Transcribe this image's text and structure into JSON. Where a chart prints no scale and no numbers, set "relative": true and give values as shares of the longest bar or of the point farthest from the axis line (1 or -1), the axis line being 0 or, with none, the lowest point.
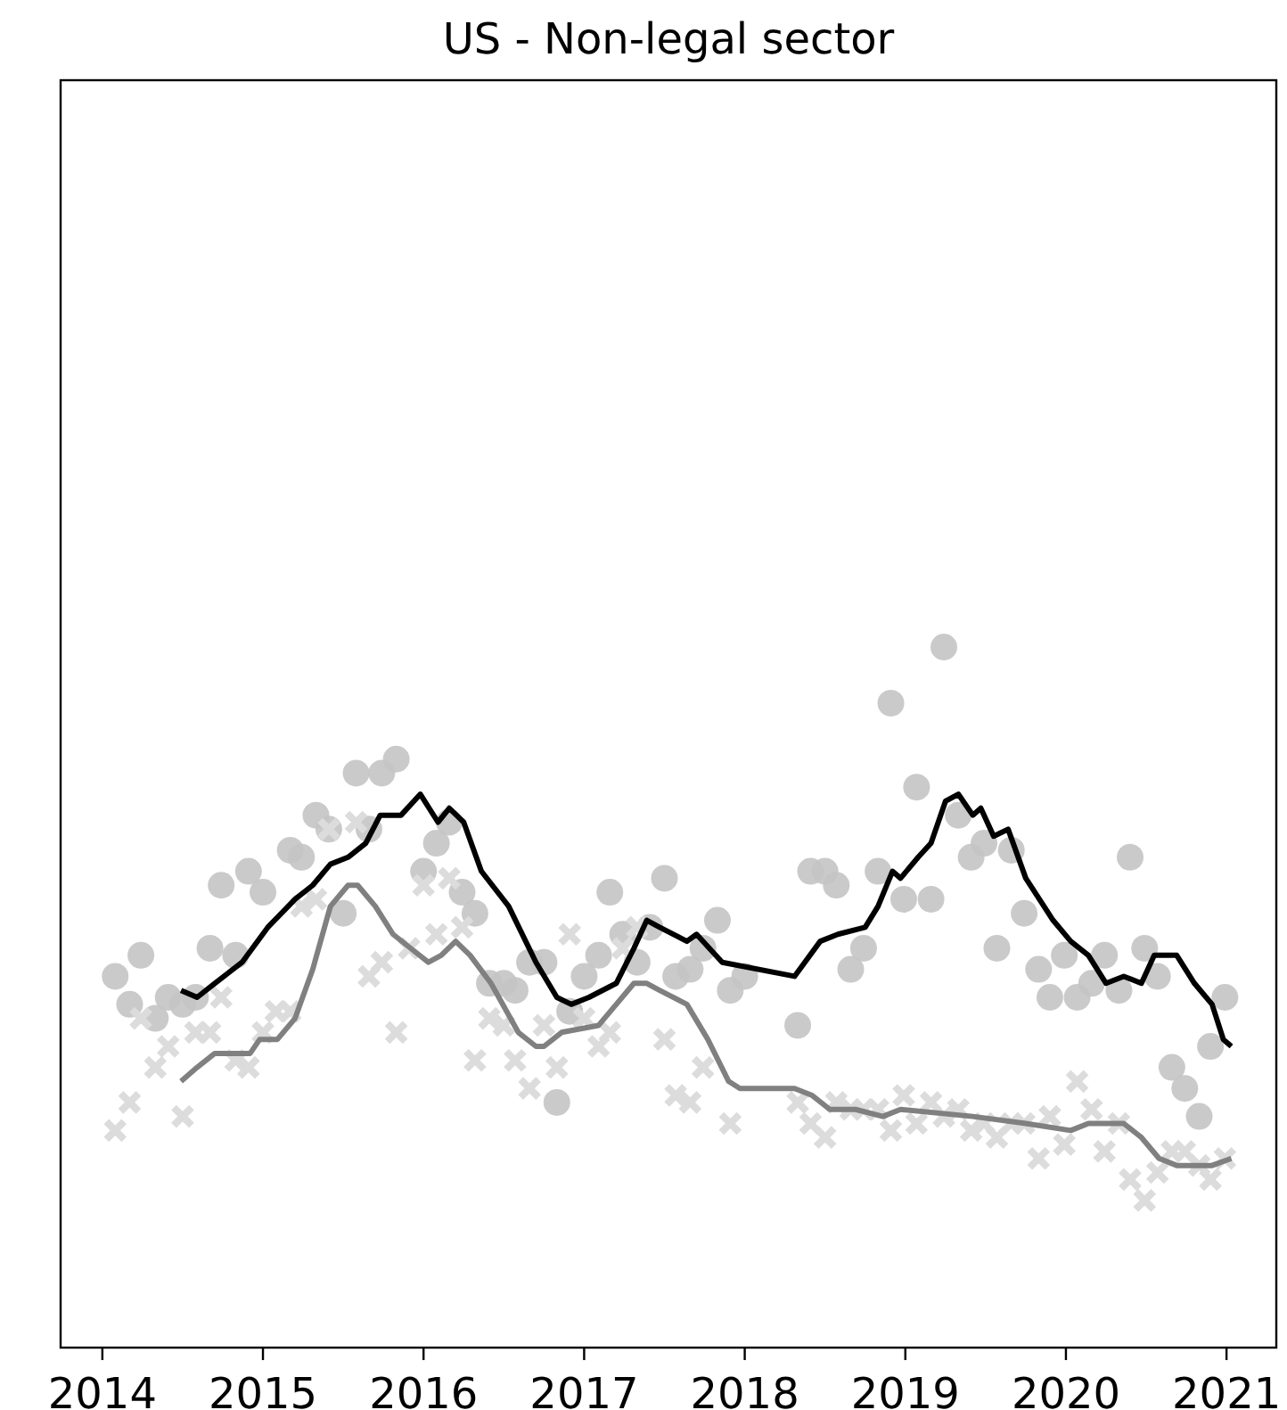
{
  "chart_data": {
    "type": "line",
    "title": "US - Non-legal sector",
    "relative": true,
    "grid": false,
    "xlim": [
      2013.74,
      2021.31
    ],
    "xticks": [
      2014,
      2015,
      2016,
      2017,
      2018,
      2019,
      2020,
      2021
    ],
    "series": [
      {
        "type": "scatter",
        "marker": "circle",
        "color": "#c4c4c4",
        "x": [
          2014.08,
          2014.17,
          2014.24,
          2014.33,
          2014.41,
          2014.5,
          2014.58,
          2014.67,
          2014.74,
          2014.83,
          2014.91,
          2015.0,
          2015.17,
          2015.24,
          2015.33,
          2015.41,
          2015.5,
          2015.58,
          2015.66,
          2015.74,
          2015.83,
          2016.0,
          2016.08,
          2016.16,
          2016.24,
          2016.32,
          2016.41,
          2016.5,
          2016.57,
          2016.66,
          2016.75,
          2016.83,
          2016.91,
          2017.0,
          2017.09,
          2017.16,
          2017.24,
          2017.33,
          2017.41,
          2017.5,
          2017.57,
          2017.66,
          2017.74,
          2017.83,
          2017.91,
          2018.0,
          2018.33,
          2018.41,
          2018.5,
          2018.57,
          2018.66,
          2018.74,
          2018.83,
          2018.91,
          2018.99,
          2019.07,
          2019.16,
          2019.24,
          2019.33,
          2019.41,
          2019.49,
          2019.57,
          2019.66,
          2019.74,
          2019.83,
          2019.9,
          2019.99,
          2020.07,
          2020.16,
          2020.24,
          2020.33,
          2020.4,
          2020.49,
          2020.57,
          2020.66,
          2020.74,
          2020.83,
          2020.9,
          2020.99
        ],
        "values": [
          0.53,
          0.49,
          0.56,
          0.47,
          0.5,
          0.49,
          0.5,
          0.57,
          0.66,
          0.56,
          0.68,
          0.65,
          0.71,
          0.7,
          0.76,
          0.74,
          0.62,
          0.82,
          0.74,
          0.82,
          0.84,
          0.68,
          0.72,
          0.75,
          0.65,
          0.62,
          0.52,
          0.52,
          0.51,
          0.55,
          0.55,
          0.35,
          0.48,
          0.53,
          0.56,
          0.65,
          0.59,
          0.55,
          0.6,
          0.67,
          0.53,
          0.54,
          0.57,
          0.61,
          0.51,
          0.53,
          0.46,
          0.68,
          0.68,
          0.66,
          0.54,
          0.57,
          0.68,
          0.92,
          0.64,
          0.8,
          0.64,
          1,
          0.76,
          0.7,
          0.72,
          0.57,
          0.71,
          0.62,
          0.54,
          0.5,
          0.56,
          0.5,
          0.52,
          0.56,
          0.51,
          0.7,
          0.57,
          0.53,
          0.4,
          0.37,
          0.33,
          0.43,
          0.5
        ]
      },
      {
        "type": "scatter",
        "marker": "cross",
        "color": "#dcdcdc",
        "x": [
          2014.08,
          2014.17,
          2014.24,
          2014.33,
          2014.41,
          2014.5,
          2014.58,
          2014.67,
          2014.74,
          2014.83,
          2014.91,
          2015.0,
          2015.08,
          2015.17,
          2015.24,
          2015.33,
          2015.41,
          2015.58,
          2015.66,
          2015.74,
          2015.83,
          2015.91,
          2016.0,
          2016.08,
          2016.16,
          2016.24,
          2016.32,
          2016.41,
          2016.5,
          2016.57,
          2016.66,
          2016.75,
          2016.83,
          2016.91,
          2017.0,
          2017.09,
          2017.16,
          2017.24,
          2017.33,
          2017.5,
          2017.57,
          2017.66,
          2017.74,
          2017.91,
          2018.33,
          2018.41,
          2018.5,
          2018.57,
          2018.66,
          2018.74,
          2018.83,
          2018.91,
          2018.99,
          2019.07,
          2019.16,
          2019.24,
          2019.33,
          2019.41,
          2019.49,
          2019.57,
          2019.66,
          2019.74,
          2019.83,
          2019.9,
          2019.99,
          2020.07,
          2020.16,
          2020.24,
          2020.33,
          2020.4,
          2020.49,
          2020.57,
          2020.66,
          2020.74,
          2020.83,
          2020.9,
          2020.99
        ],
        "values": [
          0.31,
          0.35,
          0.47,
          0.4,
          0.43,
          0.33,
          0.45,
          0.45,
          0.5,
          0.41,
          0.4,
          0.45,
          0.48,
          0.48,
          0.63,
          0.64,
          0.74,
          0.75,
          0.53,
          0.55,
          0.45,
          0.57,
          0.66,
          0.59,
          0.67,
          0.6,
          0.41,
          0.47,
          0.46,
          0.41,
          0.37,
          0.46,
          0.4,
          0.59,
          0.47,
          0.43,
          0.45,
          0.57,
          0.6,
          0.44,
          0.36,
          0.35,
          0.4,
          0.32,
          0.35,
          0.32,
          0.3,
          0.35,
          0.34,
          0.34,
          0.34,
          0.31,
          0.36,
          0.32,
          0.35,
          0.33,
          0.34,
          0.31,
          0.32,
          0.3,
          0.32,
          0.32,
          0.27,
          0.33,
          0.29,
          0.38,
          0.34,
          0.28,
          0.32,
          0.24,
          0.21,
          0.25,
          0.28,
          0.28,
          0.26,
          0.24,
          0.27
        ]
      },
      {
        "color": "#000000",
        "x": [
          2014.49,
          2014.59,
          2014.7,
          2014.87,
          2015.03,
          2015.2,
          2015.31,
          2015.42,
          2015.53,
          2015.64,
          2015.73,
          2015.86,
          2015.98,
          2016.09,
          2016.16,
          2016.25,
          2016.36,
          2016.53,
          2016.7,
          2016.83,
          2016.92,
          2017.03,
          2017.2,
          2017.31,
          2017.39,
          2017.47,
          2017.64,
          2017.7,
          2017.78,
          2017.86,
          2018.31,
          2018.47,
          2018.58,
          2018.75,
          2018.83,
          2018.92,
          2018.97,
          2019.08,
          2019.16,
          2019.25,
          2019.33,
          2019.42,
          2019.47,
          2019.55,
          2019.64,
          2019.75,
          2019.92,
          2020.03,
          2020.14,
          2020.25,
          2020.36,
          2020.47,
          2020.55,
          2020.69,
          2020.8,
          2020.91,
          2020.98,
          2021.03
        ],
        "values": [
          0.51,
          0.5,
          0.52,
          0.55,
          0.6,
          0.64,
          0.66,
          0.69,
          0.7,
          0.72,
          0.76,
          0.76,
          0.79,
          0.75,
          0.77,
          0.75,
          0.68,
          0.63,
          0.55,
          0.5,
          0.49,
          0.5,
          0.52,
          0.57,
          0.61,
          0.6,
          0.58,
          0.59,
          0.57,
          0.55,
          0.53,
          0.58,
          0.59,
          0.6,
          0.63,
          0.68,
          0.67,
          0.7,
          0.72,
          0.78,
          0.79,
          0.76,
          0.77,
          0.73,
          0.74,
          0.67,
          0.61,
          0.58,
          0.56,
          0.52,
          0.53,
          0.52,
          0.56,
          0.56,
          0.52,
          0.49,
          0.44,
          0.43
        ]
      },
      {
        "color": "#808080",
        "x": [
          2014.49,
          2014.59,
          2014.7,
          2014.81,
          2014.92,
          2014.98,
          2015.09,
          2015.2,
          2015.31,
          2015.42,
          2015.53,
          2015.59,
          2015.7,
          2015.81,
          2015.92,
          2016.03,
          2016.11,
          2016.2,
          2016.29,
          2016.42,
          2016.59,
          2016.7,
          2016.75,
          2016.86,
          2017.09,
          2017.2,
          2017.31,
          2017.39,
          2017.47,
          2017.64,
          2017.77,
          2017.9,
          2017.97,
          2018.31,
          2018.42,
          2018.53,
          2018.69,
          2018.86,
          2018.97,
          2019.42,
          2019.75,
          2020.03,
          2020.14,
          2020.27,
          2020.36,
          2020.47,
          2020.58,
          2020.69,
          2020.8,
          2020.91,
          2021.03
        ],
        "values": [
          0.38,
          0.4,
          0.42,
          0.42,
          0.42,
          0.44,
          0.44,
          0.47,
          0.54,
          0.63,
          0.66,
          0.66,
          0.63,
          0.59,
          0.57,
          0.55,
          0.56,
          0.58,
          0.56,
          0.52,
          0.45,
          0.43,
          0.43,
          0.45,
          0.46,
          0.49,
          0.52,
          0.52,
          0.51,
          0.49,
          0.44,
          0.38,
          0.37,
          0.37,
          0.36,
          0.34,
          0.34,
          0.33,
          0.34,
          0.33,
          0.32,
          0.31,
          0.32,
          0.32,
          0.32,
          0.3,
          0.27,
          0.26,
          0.26,
          0.26,
          0.27
        ]
      }
    ]
  }
}
